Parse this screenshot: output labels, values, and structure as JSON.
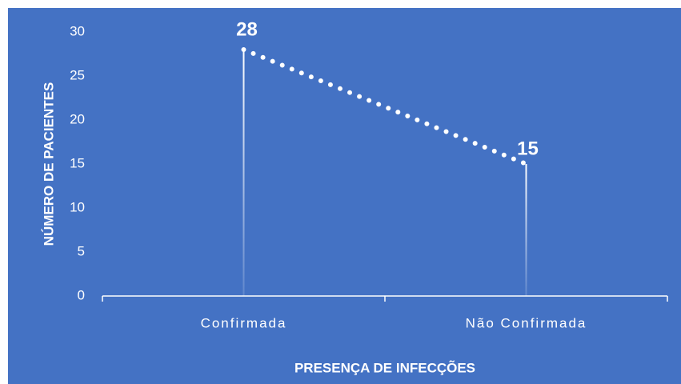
{
  "chart_data": {
    "type": "line",
    "x_label": "PRESENÇA DE INFECÇÕES",
    "y_label": "NÚMERO  DE  PACIENTES",
    "categories": [
      "Confirmada",
      "Não Confirmada"
    ],
    "values": [
      28,
      15
    ],
    "color": "#ffffff",
    "background": "#4472c4",
    "ylim": [
      0,
      30
    ],
    "yticks": [
      0,
      5,
      10,
      15,
      20,
      25,
      30
    ],
    "grid": false,
    "drop_lines": true
  }
}
